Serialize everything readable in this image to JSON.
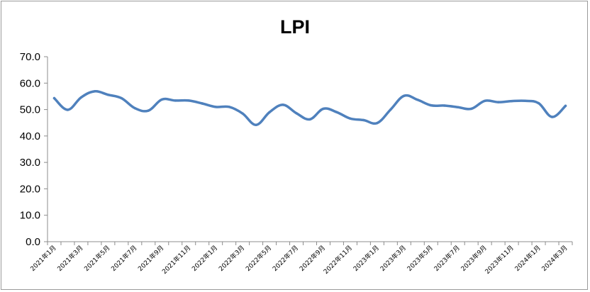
{
  "chart_data": {
    "type": "line",
    "title": "LPI",
    "xlabel": "",
    "ylabel": "",
    "ylim": [
      0,
      70
    ],
    "yticks": [
      "0.0",
      "10.0",
      "20.0",
      "30.0",
      "40.0",
      "50.0",
      "60.0",
      "70.0"
    ],
    "grid": false,
    "legend": "none",
    "categories": [
      "2021年1月",
      "2021年2月",
      "2021年3月",
      "2021年4月",
      "2021年5月",
      "2021年6月",
      "2021年7月",
      "2021年8月",
      "2021年9月",
      "2021年10月",
      "2021年11月",
      "2021年12月",
      "2022年1月",
      "2022年2月",
      "2022年3月",
      "2022年4月",
      "2022年5月",
      "2022年6月",
      "2022年7月",
      "2022年8月",
      "2022年9月",
      "2022年10月",
      "2022年11月",
      "2022年12月",
      "2023年1月",
      "2023年2月",
      "2023年3月",
      "2023年4月",
      "2023年5月",
      "2023年6月",
      "2023年7月",
      "2023年8月",
      "2023年9月",
      "2023年10月",
      "2023年11月",
      "2023年12月",
      "2024年1月",
      "2024年2月",
      "2024年3月"
    ],
    "xtick_labels": [
      "2021年1月",
      "2021年3月",
      "2021年5月",
      "2021年7月",
      "2021年9月",
      "2021年11月",
      "2022年1月",
      "2022年3月",
      "2022年5月",
      "2022年7月",
      "2022年9月",
      "2022年11月",
      "2023年1月",
      "2023年3月",
      "2023年5月",
      "2023年7月",
      "2023年9月",
      "2023年11月",
      "2024年1月",
      "2024年3月"
    ],
    "series": [
      {
        "color": "#4f81bd",
        "values": [
          54.3,
          49.9,
          54.6,
          56.9,
          55.6,
          54.3,
          50.5,
          49.6,
          53.8,
          53.4,
          53.4,
          52.3,
          51.0,
          51.0,
          48.5,
          44.2,
          49.0,
          51.8,
          48.6,
          46.3,
          50.3,
          49.0,
          46.6,
          46.0,
          44.9,
          50.0,
          55.2,
          53.7,
          51.6,
          51.5,
          50.9,
          50.3,
          53.3,
          52.8,
          53.2,
          53.3,
          52.4,
          47.2,
          51.4
        ]
      }
    ]
  }
}
